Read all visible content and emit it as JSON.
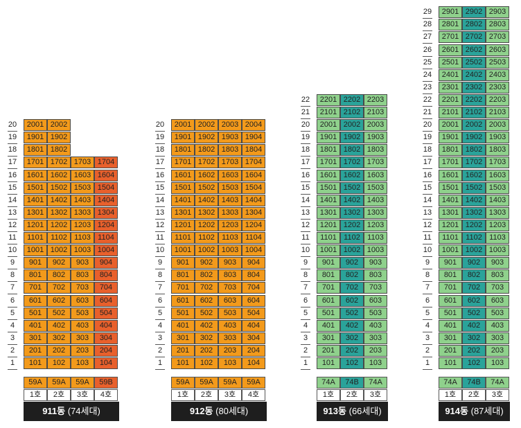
{
  "colors": {
    "orange": "#f39a1b",
    "orange_dark": "#e8602c",
    "green": "#8fd18c",
    "teal": "#2aa39a",
    "type_orange": "#f39a1b",
    "type_orange_dark": "#e8602c",
    "type_green": "#8fd18c",
    "type_teal": "#2aa39a"
  },
  "buildings": [
    {
      "label": "911동",
      "count": "(74세대)",
      "floors": 20,
      "line_names": [
        "1호",
        "2호",
        "3호",
        "4호"
      ],
      "unit_types": [
        "59A",
        "59A",
        "59A",
        "59B"
      ],
      "line_top_floors": [
        20,
        20,
        17,
        17
      ],
      "line_colors": [
        "orange",
        "orange",
        "orange",
        "orange_dark"
      ],
      "type_colors": [
        "type_orange",
        "type_orange",
        "type_orange",
        "type_orange_dark"
      ]
    },
    {
      "label": "912동",
      "count": "(80세대)",
      "floors": 20,
      "line_names": [
        "1호",
        "2호",
        "3호",
        "4호"
      ],
      "unit_types": [
        "59A",
        "59A",
        "59A",
        "59A"
      ],
      "line_top_floors": [
        20,
        20,
        20,
        20
      ],
      "line_colors": [
        "orange",
        "orange",
        "orange",
        "orange"
      ],
      "type_colors": [
        "type_orange",
        "type_orange",
        "type_orange",
        "type_orange"
      ]
    },
    {
      "label": "913동",
      "count": "(66세대)",
      "floors": 22,
      "line_names": [
        "1호",
        "2호",
        "3호"
      ],
      "unit_types": [
        "74A",
        "74B",
        "74A"
      ],
      "line_top_floors": [
        22,
        22,
        22
      ],
      "line_colors": [
        "green",
        "teal",
        "green"
      ],
      "type_colors": [
        "type_green",
        "type_teal",
        "type_green"
      ]
    },
    {
      "label": "914동",
      "count": "(87세대)",
      "floors": 29,
      "line_names": [
        "1호",
        "2호",
        "3호"
      ],
      "unit_types": [
        "74A",
        "74B",
        "74A"
      ],
      "line_top_floors": [
        29,
        29,
        29
      ],
      "line_colors": [
        "green",
        "teal",
        "green"
      ],
      "type_colors": [
        "type_green",
        "type_teal",
        "type_green"
      ]
    }
  ]
}
